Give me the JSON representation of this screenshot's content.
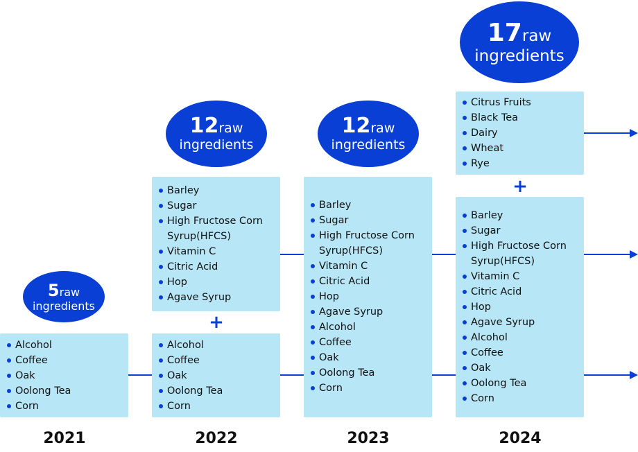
{
  "columns": [
    {
      "year": "2021",
      "bubble": {
        "count": "5",
        "raw_label": "raw",
        "ingredients_label": "ingredients"
      },
      "groups": [
        {
          "items": [
            "Alcohol",
            "Coffee",
            "Oak",
            "Oolong Tea",
            "Corn"
          ]
        }
      ]
    },
    {
      "year": "2022",
      "bubble": {
        "count": "12",
        "raw_label": "raw",
        "ingredients_label": "ingredients"
      },
      "groups": [
        {
          "items": [
            "Barley",
            "Sugar",
            "High Fructose Corn",
            "Syrup(HFCS)",
            "Vitamin C",
            "Citric Acid",
            "Hop",
            "Agave Syrup"
          ]
        },
        {
          "items": [
            "Alcohol",
            "Coffee",
            "Oak",
            "Oolong Tea",
            "Corn"
          ]
        }
      ]
    },
    {
      "year": "2023",
      "bubble": {
        "count": "12",
        "raw_label": "raw",
        "ingredients_label": "ingredients"
      },
      "groups": [
        {
          "items": [
            "Barley",
            "Sugar",
            "High Fructose Corn",
            "Syrup(HFCS)",
            "Vitamin C",
            "Citric Acid",
            "Hop",
            "Agave Syrup",
            "Alcohol",
            "Coffee",
            "Oak",
            "Oolong Tea",
            "Corn"
          ]
        }
      ]
    },
    {
      "year": "2024",
      "bubble": {
        "count": "17",
        "raw_label": "raw",
        "ingredients_label": "ingredients"
      },
      "groups": [
        {
          "items": [
            "Citrus Fruits",
            "Black Tea",
            "Dairy",
            "Wheat",
            "Rye"
          ]
        },
        {
          "items": [
            "Barley",
            "Sugar",
            "High Fructose Corn",
            "Syrup(HFCS)",
            "Vitamin C",
            "Citric Acid",
            "Hop",
            "Agave Syrup",
            "Alcohol",
            "Coffee",
            "Oak",
            "Oolong Tea",
            "Corn"
          ]
        }
      ]
    }
  ],
  "plus_symbol": "+",
  "colors": {
    "accent": "#0a3fd6",
    "box": "#b7e6f6",
    "text": "#111111"
  }
}
